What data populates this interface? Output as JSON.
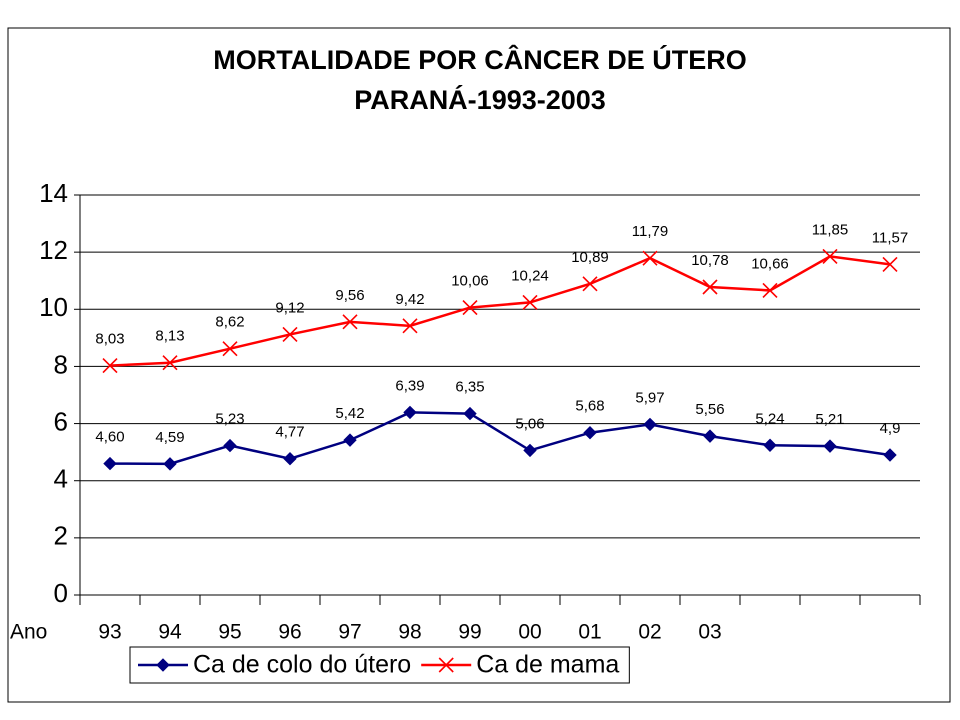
{
  "chart_data": {
    "type": "line",
    "title": "MORTALIDADE POR CÂNCER DE ÚTERO",
    "subtitle": "PARANÁ-1993-2003",
    "x_label": "Ano",
    "categories": [
      "93",
      "94",
      "95",
      "96",
      "97",
      "98",
      "99",
      "00",
      "01",
      "02",
      "03",
      null,
      null,
      null
    ],
    "series": [
      {
        "name": "Ca de colo do útero",
        "color": "#000080",
        "marker": "diamond",
        "values": [
          4.6,
          4.59,
          5.23,
          4.77,
          5.42,
          6.39,
          6.35,
          5.06,
          5.68,
          5.97,
          5.56,
          5.24,
          5.21,
          4.9
        ],
        "value_labels": [
          "4,60",
          "4,59",
          "5,23",
          "4,77",
          "5,42",
          "6,39",
          "6,35",
          "5,06",
          "5,68",
          "5,97",
          "5,56",
          "5,24",
          "5,21",
          "4,9"
        ]
      },
      {
        "name": "Ca de mama",
        "color": "#ff0000",
        "marker": "x",
        "values": [
          8.03,
          8.13,
          8.62,
          9.12,
          9.56,
          9.42,
          10.06,
          10.24,
          10.89,
          11.79,
          10.78,
          10.66,
          11.85,
          11.57
        ],
        "value_labels": [
          "8,03",
          "8,13",
          "8,62",
          "9,12",
          "9,56",
          "9,42",
          "10,06",
          "10,24",
          "10,89",
          "11,79",
          "10,78",
          "10,66",
          "11,85",
          "11,57"
        ]
      }
    ],
    "ylim": [
      0,
      14
    ],
    "yticks": [
      0,
      2,
      4,
      6,
      8,
      10,
      12,
      14
    ],
    "grid": true,
    "legend": "bottom"
  }
}
